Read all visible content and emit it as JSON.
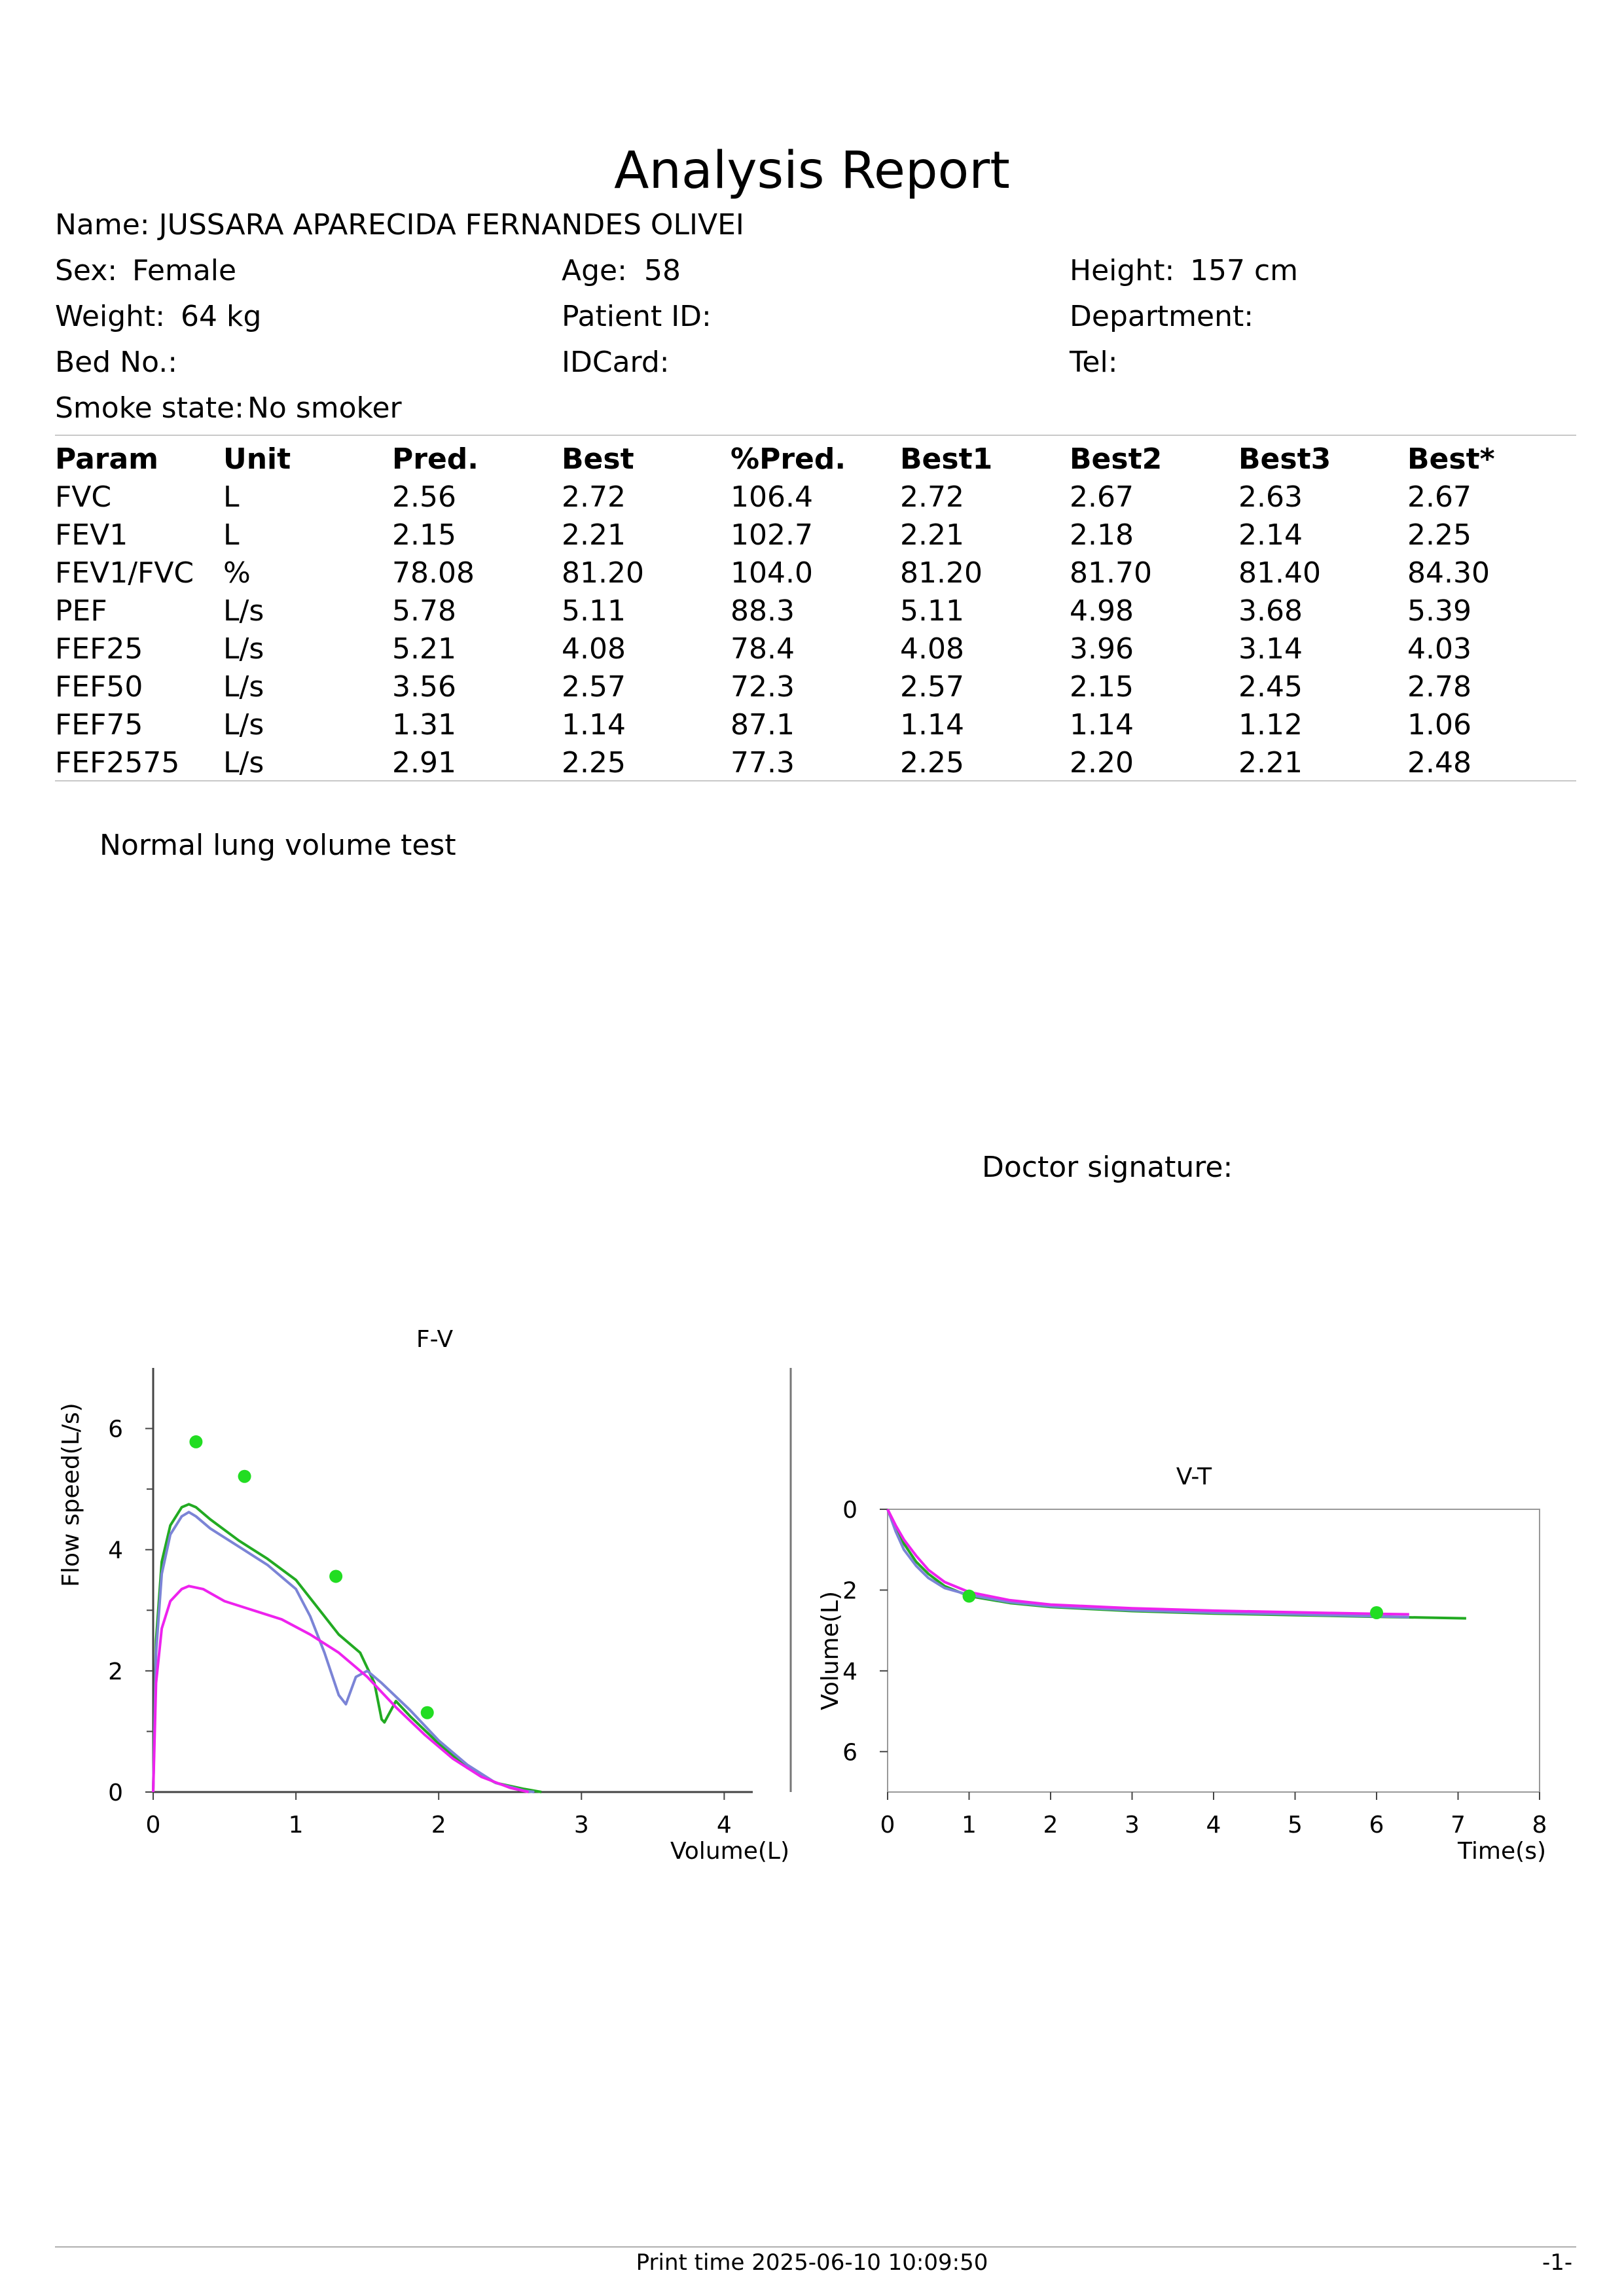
{
  "report": {
    "title": "Analysis Report",
    "name": {
      "label": "Name:",
      "value": "JUSSARA APARECIDA FERNANDES OLIVEI"
    },
    "sex": {
      "label": "Sex:",
      "value": "Female"
    },
    "age": {
      "label": "Age:",
      "value": "58"
    },
    "height": {
      "label": "Height:",
      "value": "157 cm"
    },
    "weight": {
      "label": "Weight:",
      "value": "64 kg"
    },
    "patient_id": {
      "label": "Patient ID:",
      "value": ""
    },
    "department": {
      "label": "Department:",
      "value": ""
    },
    "bed_no": {
      "label": "Bed No.:",
      "value": ""
    },
    "idcard": {
      "label": "IDCard:",
      "value": ""
    },
    "tel": {
      "label": "Tel:",
      "value": ""
    },
    "smoke_state": {
      "label": "Smoke state:",
      "value": "No smoker"
    }
  },
  "table": {
    "headers": [
      "Param",
      "Unit",
      "Pred.",
      "Best",
      "%Pred.",
      "Best1",
      "Best2",
      "Best3",
      "Best*"
    ],
    "rows": [
      [
        "FVC",
        "L",
        "2.56",
        "2.72",
        "106.4",
        "2.72",
        "2.67",
        "2.63",
        "2.67"
      ],
      [
        "FEV1",
        "L",
        "2.15",
        "2.21",
        "102.7",
        "2.21",
        "2.18",
        "2.14",
        "2.25"
      ],
      [
        "FEV1/FVC",
        "%",
        "78.08",
        "81.20",
        "104.0",
        "81.20",
        "81.70",
        "81.40",
        "84.30"
      ],
      [
        "PEF",
        "L/s",
        "5.78",
        "5.11",
        "88.3",
        "5.11",
        "4.98",
        "3.68",
        "5.39"
      ],
      [
        "FEF25",
        "L/s",
        "5.21",
        "4.08",
        "78.4",
        "4.08",
        "3.96",
        "3.14",
        "4.03"
      ],
      [
        "FEF50",
        "L/s",
        "3.56",
        "2.57",
        "72.3",
        "2.57",
        "2.15",
        "2.45",
        "2.78"
      ],
      [
        "FEF75",
        "L/s",
        "1.31",
        "1.14",
        "87.1",
        "1.14",
        "1.14",
        "1.12",
        "1.06"
      ],
      [
        "FEF2575",
        "L/s",
        "2.91",
        "2.25",
        "77.3",
        "2.25",
        "2.20",
        "2.21",
        "2.48"
      ]
    ]
  },
  "conclusion": "Normal lung volume test",
  "doctor_signature_label": "Doctor signature:",
  "footer": {
    "print_time": "Print time 2025-06-10 10:09:50",
    "page": "-1-"
  },
  "colors": {
    "green": "#22aa22",
    "blue": "#7b84d6",
    "magenta": "#ee22ee",
    "marker": "#22dd22"
  },
  "chart_data": [
    {
      "type": "line",
      "title": "F-V",
      "xlabel": "Volume(L)",
      "ylabel": "Flow speed(L/s)",
      "xlim": [
        0,
        4.2
      ],
      "ylim": [
        0,
        7
      ],
      "xticks": [
        0,
        1,
        2,
        3,
        4
      ],
      "yticks": [
        0,
        2,
        4,
        6
      ],
      "series": [
        {
          "color": "green",
          "points": [
            [
              0,
              0
            ],
            [
              0.02,
              2.5
            ],
            [
              0.06,
              3.8
            ],
            [
              0.12,
              4.4
            ],
            [
              0.2,
              4.7
            ],
            [
              0.25,
              4.75
            ],
            [
              0.3,
              4.7
            ],
            [
              0.4,
              4.5
            ],
            [
              0.6,
              4.15
            ],
            [
              0.8,
              3.85
            ],
            [
              1.0,
              3.5
            ],
            [
              1.2,
              2.9
            ],
            [
              1.3,
              2.6
            ],
            [
              1.45,
              2.3
            ],
            [
              1.55,
              1.8
            ],
            [
              1.6,
              1.2
            ],
            [
              1.62,
              1.15
            ],
            [
              1.7,
              1.5
            ],
            [
              1.8,
              1.25
            ],
            [
              2.0,
              0.8
            ],
            [
              2.2,
              0.4
            ],
            [
              2.4,
              0.15
            ],
            [
              2.6,
              0.05
            ],
            [
              2.72,
              0
            ]
          ]
        },
        {
          "color": "blue",
          "points": [
            [
              0,
              0
            ],
            [
              0.02,
              2.3
            ],
            [
              0.06,
              3.6
            ],
            [
              0.12,
              4.25
            ],
            [
              0.2,
              4.55
            ],
            [
              0.25,
              4.62
            ],
            [
              0.3,
              4.55
            ],
            [
              0.4,
              4.35
            ],
            [
              0.6,
              4.05
            ],
            [
              0.8,
              3.75
            ],
            [
              1.0,
              3.35
            ],
            [
              1.1,
              2.9
            ],
            [
              1.2,
              2.3
            ],
            [
              1.3,
              1.6
            ],
            [
              1.35,
              1.45
            ],
            [
              1.42,
              1.9
            ],
            [
              1.5,
              2.0
            ],
            [
              1.6,
              1.8
            ],
            [
              1.8,
              1.35
            ],
            [
              2.0,
              0.85
            ],
            [
              2.2,
              0.45
            ],
            [
              2.4,
              0.15
            ],
            [
              2.6,
              0.02
            ],
            [
              2.67,
              0
            ]
          ]
        },
        {
          "color": "magenta",
          "points": [
            [
              0,
              0
            ],
            [
              0.02,
              1.8
            ],
            [
              0.06,
              2.7
            ],
            [
              0.12,
              3.15
            ],
            [
              0.2,
              3.35
            ],
            [
              0.25,
              3.4
            ],
            [
              0.35,
              3.35
            ],
            [
              0.5,
              3.15
            ],
            [
              0.7,
              3.0
            ],
            [
              0.9,
              2.85
            ],
            [
              1.1,
              2.6
            ],
            [
              1.3,
              2.3
            ],
            [
              1.5,
              1.9
            ],
            [
              1.7,
              1.4
            ],
            [
              1.9,
              0.95
            ],
            [
              2.1,
              0.55
            ],
            [
              2.3,
              0.25
            ],
            [
              2.5,
              0.07
            ],
            [
              2.63,
              0
            ]
          ]
        }
      ],
      "predicted_points": [
        [
          0.3,
          5.78
        ],
        [
          0.64,
          5.21
        ],
        [
          1.28,
          3.56
        ],
        [
          1.92,
          1.31
        ]
      ]
    },
    {
      "type": "line",
      "title": "V-T",
      "xlabel": "Time(s)",
      "ylabel": "Volume(L)",
      "xlim": [
        0,
        8
      ],
      "ylim": [
        0,
        7
      ],
      "y_inverted": true,
      "xticks": [
        0,
        1,
        2,
        3,
        4,
        5,
        6,
        7,
        8
      ],
      "yticks": [
        0,
        2,
        4,
        6
      ],
      "series": [
        {
          "color": "green",
          "points": [
            [
              0,
              0
            ],
            [
              0.1,
              0.45
            ],
            [
              0.2,
              0.85
            ],
            [
              0.35,
              1.3
            ],
            [
              0.5,
              1.6
            ],
            [
              0.7,
              1.9
            ],
            [
              1.0,
              2.15
            ],
            [
              1.5,
              2.32
            ],
            [
              2,
              2.42
            ],
            [
              3,
              2.52
            ],
            [
              4,
              2.58
            ],
            [
              5,
              2.62
            ],
            [
              6,
              2.66
            ],
            [
              7.1,
              2.7
            ]
          ]
        },
        {
          "color": "blue",
          "points": [
            [
              0,
              0
            ],
            [
              0.1,
              0.55
            ],
            [
              0.2,
              1.0
            ],
            [
              0.35,
              1.4
            ],
            [
              0.5,
              1.7
            ],
            [
              0.7,
              1.95
            ],
            [
              1.0,
              2.12
            ],
            [
              1.5,
              2.3
            ],
            [
              2,
              2.4
            ],
            [
              3,
              2.5
            ],
            [
              4,
              2.56
            ],
            [
              5,
              2.6
            ],
            [
              6,
              2.65
            ],
            [
              6.4,
              2.67
            ]
          ]
        },
        {
          "color": "magenta",
          "points": [
            [
              0,
              0
            ],
            [
              0.1,
              0.4
            ],
            [
              0.2,
              0.75
            ],
            [
              0.35,
              1.15
            ],
            [
              0.5,
              1.5
            ],
            [
              0.7,
              1.8
            ],
            [
              1.0,
              2.05
            ],
            [
              1.5,
              2.25
            ],
            [
              2,
              2.36
            ],
            [
              3,
              2.45
            ],
            [
              4,
              2.51
            ],
            [
              5,
              2.55
            ],
            [
              6,
              2.59
            ],
            [
              6.4,
              2.6
            ]
          ]
        }
      ],
      "predicted_points": [
        [
          1,
          2.15
        ],
        [
          6,
          2.56
        ]
      ]
    }
  ]
}
